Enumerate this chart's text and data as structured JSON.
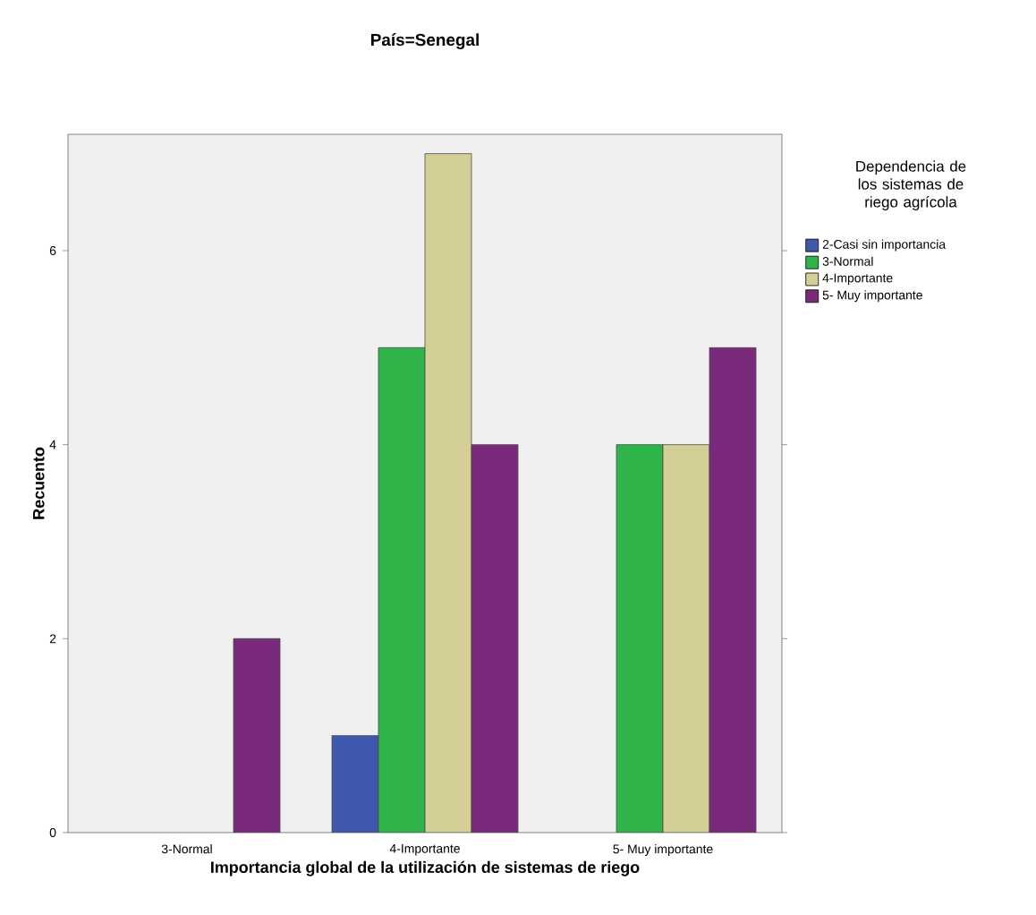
{
  "chart_data": {
    "type": "bar",
    "title": "País=Senegal",
    "xlabel": "Importancia global de la utilización de sistemas de riego",
    "ylabel": "Recuento",
    "legend_title": "Dependencia de los sistemas de riego agrícola",
    "legend": "right",
    "categories": [
      "3-Normal",
      "4-Importante",
      "5- Muy importante"
    ],
    "ylim": [
      0,
      7.2
    ],
    "yticks": [
      0,
      2,
      4,
      6
    ],
    "series": [
      {
        "name": "2-Casi sin importancia",
        "color": "#3e58ac",
        "values": [
          null,
          1,
          null
        ]
      },
      {
        "name": "3-Normal",
        "color": "#2fb44a",
        "values": [
          null,
          5,
          4
        ]
      },
      {
        "name": "4-Importante",
        "color": "#d4cf96",
        "values": [
          null,
          7,
          4
        ]
      },
      {
        "name": "5- Muy importante",
        "color": "#7a2a7a",
        "values": [
          2,
          4,
          5
        ]
      }
    ]
  }
}
